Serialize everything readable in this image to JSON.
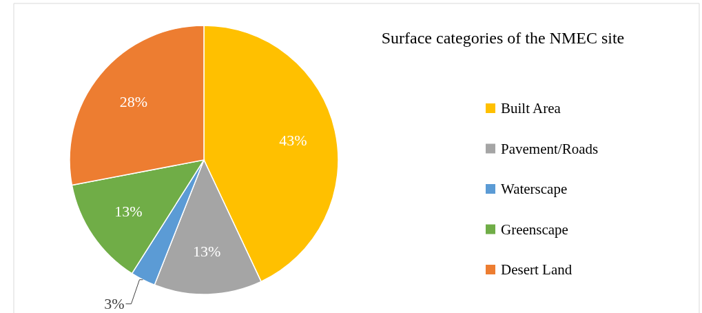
{
  "chart_data": {
    "type": "pie",
    "title": "Surface categories of the NMEC site",
    "categories": [
      "Built Area",
      "Pavement/Roads",
      "Waterscape",
      "Greenscape",
      "Desert Land"
    ],
    "values": [
      43,
      13,
      3,
      13,
      28
    ],
    "colors": [
      "#ffc000",
      "#a5a5a5",
      "#5b9bd5",
      "#70ad47",
      "#ed7d31"
    ],
    "value_labels": [
      "43%",
      "13%",
      "3%",
      "13%",
      "28%"
    ],
    "legend": "right"
  }
}
